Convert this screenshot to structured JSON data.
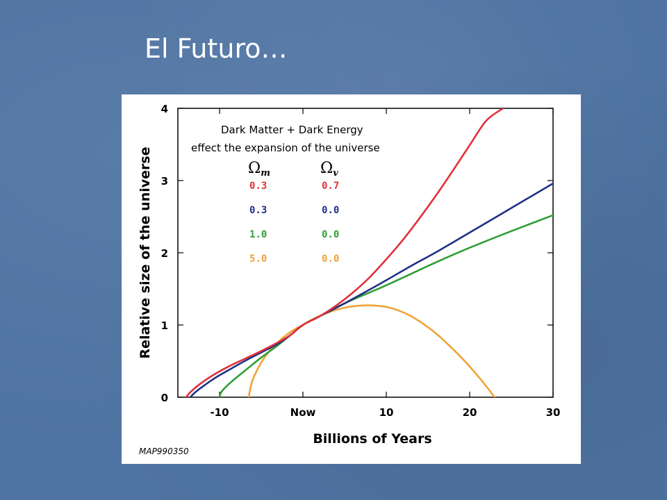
{
  "slide": {
    "title": "El Futuro…"
  },
  "chart_data": {
    "type": "line",
    "annotation": [
      "Dark Matter + Dark Energy",
      "effect the expansion of the universe"
    ],
    "xlabel": "Billions of Years",
    "ylabel": "Relative size of the universe",
    "xlim": [
      -15,
      30
    ],
    "ylim": [
      0,
      4
    ],
    "x_ticks": [
      {
        "value": -10,
        "label": "-10"
      },
      {
        "value": 0,
        "label": "Now"
      },
      {
        "value": 10,
        "label": "10"
      },
      {
        "value": 20,
        "label": "20"
      },
      {
        "value": 30,
        "label": "30"
      }
    ],
    "y_ticks": [
      {
        "value": 0,
        "label": "0"
      },
      {
        "value": 1,
        "label": "1"
      },
      {
        "value": 2,
        "label": "2"
      },
      {
        "value": 3,
        "label": "3"
      },
      {
        "value": 4,
        "label": "4"
      }
    ],
    "legend_headers": {
      "omega": "Ω",
      "sub_m": "m",
      "sub_v": "v"
    },
    "series": [
      {
        "omega_m": "0.3",
        "omega_v": "0.7",
        "color": "#e0303a",
        "x": [
          -14.0,
          -13.5,
          -12.5,
          -11.0,
          -9.0,
          -7.0,
          -5.0,
          -3.0,
          -1.5,
          0,
          2,
          4,
          6,
          8,
          10,
          12,
          14,
          16,
          18,
          20,
          22,
          24
        ],
        "y": [
          0.0,
          0.07,
          0.17,
          0.29,
          0.42,
          0.53,
          0.64,
          0.76,
          0.86,
          1.0,
          1.12,
          1.27,
          1.45,
          1.66,
          1.91,
          2.18,
          2.48,
          2.8,
          3.14,
          3.49,
          3.83,
          4.0
        ]
      },
      {
        "omega_m": "0.3",
        "omega_v": "0.0",
        "color": "#1f2f88",
        "x": [
          -13.5,
          -13.0,
          -12.0,
          -10.5,
          -9.0,
          -7.0,
          -5.0,
          -3.0,
          -1.5,
          0,
          2,
          5,
          8,
          10,
          13,
          16,
          20,
          25,
          30
        ],
        "y": [
          0.0,
          0.06,
          0.15,
          0.27,
          0.37,
          0.5,
          0.62,
          0.74,
          0.86,
          1.0,
          1.12,
          1.3,
          1.49,
          1.62,
          1.82,
          2.01,
          2.28,
          2.62,
          2.96
        ]
      },
      {
        "omega_m": "1.0",
        "omega_v": "0.0",
        "color": "#2e9e35",
        "x": [
          -10.0,
          -9.8,
          -9.0,
          -8.0,
          -6.5,
          -5.0,
          -3.0,
          -1.5,
          0,
          2,
          5,
          8,
          10,
          13,
          16,
          20,
          25,
          30
        ],
        "y": [
          0.0,
          0.07,
          0.17,
          0.27,
          0.41,
          0.55,
          0.72,
          0.86,
          1.0,
          1.12,
          1.3,
          1.45,
          1.55,
          1.71,
          1.87,
          2.07,
          2.3,
          2.52
        ]
      },
      {
        "omega_m": "5.0",
        "omega_v": "0.0",
        "color": "#f0a238",
        "x": [
          -6.5,
          -6.3,
          -6.0,
          -5.0,
          -4.0,
          -3.0,
          -2.0,
          -1.0,
          0,
          1,
          2.5,
          4,
          5.5,
          7,
          8.5,
          10,
          11.5,
          13,
          14.5,
          16,
          17.5,
          19,
          20.5,
          22,
          23
        ],
        "y": [
          0.0,
          0.12,
          0.25,
          0.48,
          0.64,
          0.76,
          0.86,
          0.94,
          1.0,
          1.07,
          1.15,
          1.21,
          1.25,
          1.27,
          1.27,
          1.25,
          1.2,
          1.12,
          1.01,
          0.88,
          0.72,
          0.55,
          0.36,
          0.15,
          0.0
        ]
      }
    ],
    "credit": "MAP990350"
  }
}
